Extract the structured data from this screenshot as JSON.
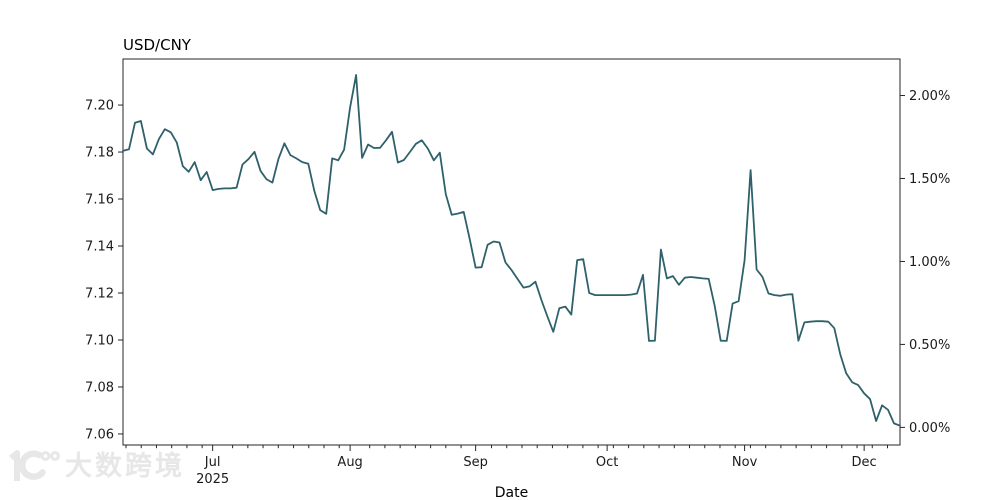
{
  "chart": {
    "title": "USD/CNY",
    "xlabel": "Date"
  },
  "watermark": {
    "logo": "10100-logo",
    "text": "大数跨境"
  },
  "colors": {
    "line": "#2e616b",
    "axis": "#262626",
    "text": "#1a1a1a",
    "watermark": "#e7e7e7",
    "background": "#ffffff"
  },
  "chart_data": {
    "type": "line",
    "title": "USD/CNY",
    "xlabel": "Date",
    "ylabel": "",
    "grid": false,
    "legend": null,
    "series_name": "USD/CNY",
    "ylim_left": [
      7.0553,
      7.2196
    ],
    "right_axis": {
      "base_value": 7.0628,
      "ticks": [
        {
          "label": "0.00%",
          "pct": 0.0
        },
        {
          "label": "0.50%",
          "pct": 0.5
        },
        {
          "label": "1.00%",
          "pct": 1.0
        },
        {
          "label": "1.50%",
          "pct": 1.5
        },
        {
          "label": "2.00%",
          "pct": 2.0
        }
      ]
    },
    "left_ticks": [
      {
        "label": "7.06",
        "value": 7.06
      },
      {
        "label": "7.08",
        "value": 7.08
      },
      {
        "label": "7.10",
        "value": 7.1
      },
      {
        "label": "7.12",
        "value": 7.12
      },
      {
        "label": "7.14",
        "value": 7.14
      },
      {
        "label": "7.16",
        "value": 7.16
      },
      {
        "label": "7.18",
        "value": 7.18
      },
      {
        "label": "7.20",
        "value": 7.2
      }
    ],
    "x_ticks": [
      {
        "label": "Jul",
        "sublabel": "2025",
        "index": 15
      },
      {
        "label": "Aug",
        "index": 38
      },
      {
        "label": "Sep",
        "index": 59
      },
      {
        "label": "Oct",
        "index": 81
      },
      {
        "label": "Nov",
        "index": 104
      },
      {
        "label": "Dec",
        "index": 124
      }
    ],
    "x": [
      "2025-06-10",
      "2025-06-11",
      "2025-06-12",
      "2025-06-13",
      "2025-06-16",
      "2025-06-17",
      "2025-06-18",
      "2025-06-19",
      "2025-06-20",
      "2025-06-23",
      "2025-06-24",
      "2025-06-25",
      "2025-06-26",
      "2025-06-27",
      "2025-06-30",
      "2025-07-01",
      "2025-07-02",
      "2025-07-03",
      "2025-07-04",
      "2025-07-07",
      "2025-07-08",
      "2025-07-09",
      "2025-07-10",
      "2025-07-11",
      "2025-07-14",
      "2025-07-15",
      "2025-07-16",
      "2025-07-17",
      "2025-07-18",
      "2025-07-21",
      "2025-07-22",
      "2025-07-23",
      "2025-07-24",
      "2025-07-25",
      "2025-07-28",
      "2025-07-29",
      "2025-07-30",
      "2025-07-31",
      "2025-08-01",
      "2025-08-04",
      "2025-08-05",
      "2025-08-06",
      "2025-08-07",
      "2025-08-08",
      "2025-08-11",
      "2025-08-12",
      "2025-08-13",
      "2025-08-14",
      "2025-08-15",
      "2025-08-18",
      "2025-08-19",
      "2025-08-20",
      "2025-08-21",
      "2025-08-22",
      "2025-08-25",
      "2025-08-26",
      "2025-08-27",
      "2025-08-28",
      "2025-08-29",
      "2025-09-01",
      "2025-09-02",
      "2025-09-03",
      "2025-09-04",
      "2025-09-05",
      "2025-09-08",
      "2025-09-09",
      "2025-09-10",
      "2025-09-11",
      "2025-09-12",
      "2025-09-15",
      "2025-09-16",
      "2025-09-17",
      "2025-09-18",
      "2025-09-19",
      "2025-09-22",
      "2025-09-23",
      "2025-09-24",
      "2025-09-25",
      "2025-09-26",
      "2025-09-29",
      "2025-09-30",
      "2025-10-01",
      "2025-10-02",
      "2025-10-03",
      "2025-10-06",
      "2025-10-07",
      "2025-10-08",
      "2025-10-09",
      "2025-10-10",
      "2025-10-13",
      "2025-10-14",
      "2025-10-15",
      "2025-10-16",
      "2025-10-17",
      "2025-10-20",
      "2025-10-21",
      "2025-10-22",
      "2025-10-23",
      "2025-10-24",
      "2025-10-27",
      "2025-10-28",
      "2025-10-29",
      "2025-10-30",
      "2025-10-31",
      "2025-11-03",
      "2025-11-04",
      "2025-11-05",
      "2025-11-06",
      "2025-11-07",
      "2025-11-10",
      "2025-11-11",
      "2025-11-12",
      "2025-11-13",
      "2025-11-14",
      "2025-11-17",
      "2025-11-18",
      "2025-11-19",
      "2025-11-20",
      "2025-11-21",
      "2025-11-24",
      "2025-11-25",
      "2025-11-26",
      "2025-11-27",
      "2025-11-28",
      "2025-12-01",
      "2025-12-02",
      "2025-12-03",
      "2025-12-04",
      "2025-12-05",
      "2025-12-08",
      "2025-12-09"
    ],
    "values": [
      7.1805,
      7.1812,
      7.1925,
      7.1932,
      7.1815,
      7.179,
      7.1855,
      7.1897,
      7.1884,
      7.184,
      7.174,
      7.1716,
      7.1757,
      7.168,
      7.1715,
      7.1638,
      7.1643,
      7.1645,
      7.1645,
      7.1648,
      7.1747,
      7.177,
      7.1801,
      7.172,
      7.1685,
      7.167,
      7.177,
      7.1837,
      7.1787,
      7.1773,
      7.1757,
      7.175,
      7.1635,
      7.1553,
      7.1537,
      7.1773,
      7.1765,
      7.181,
      7.199,
      7.2128,
      7.1775,
      7.1832,
      7.1817,
      7.1818,
      7.185,
      7.1886,
      7.1755,
      7.1766,
      7.18,
      7.1835,
      7.185,
      7.1815,
      7.1765,
      7.1797,
      7.162,
      7.1533,
      7.1538,
      7.1545,
      7.143,
      7.1308,
      7.131,
      7.1405,
      7.1419,
      7.1415,
      7.133,
      7.1298,
      7.126,
      7.1223,
      7.1228,
      7.1248,
      7.117,
      7.11,
      7.1035,
      7.1135,
      7.1142,
      7.1108,
      7.134,
      7.1344,
      7.12,
      7.1191,
      7.1191,
      7.1191,
      7.1191,
      7.1191,
      7.1191,
      7.1193,
      7.1198,
      7.1277,
      7.0996,
      7.0997,
      7.1385,
      7.1262,
      7.1272,
      7.1235,
      7.1265,
      7.1268,
      7.1265,
      7.1262,
      7.126,
      7.1145,
      7.0997,
      7.0996,
      7.1155,
      7.1165,
      7.134,
      7.1723,
      7.13,
      7.1268,
      7.1198,
      7.1191,
      7.1188,
      7.1193,
      7.1195,
      7.0997,
      7.1075,
      7.1078,
      7.108,
      7.108,
      7.1078,
      7.105,
      7.094,
      7.0858,
      7.082,
      7.0808,
      7.0773,
      7.0748,
      7.0655,
      7.0722,
      7.0703,
      7.0645,
      7.0635
    ]
  }
}
